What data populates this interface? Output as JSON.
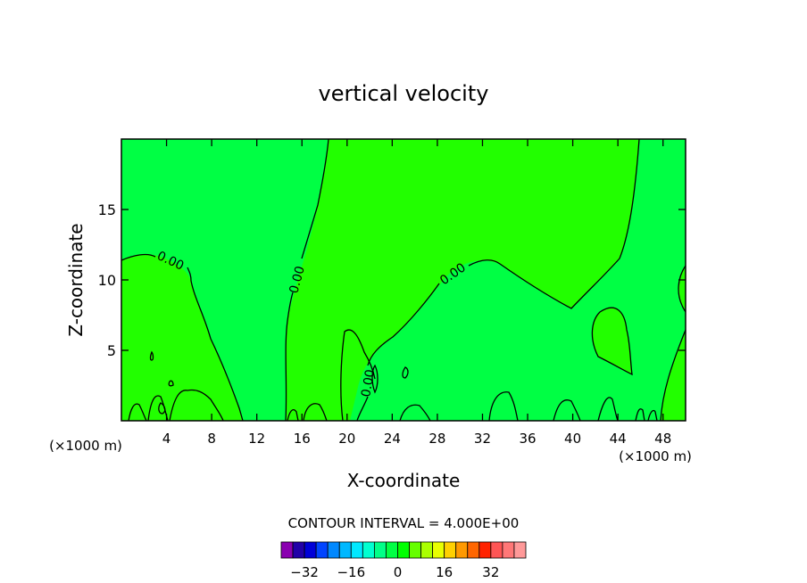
{
  "chart_data": {
    "type": "contour",
    "title": "vertical velocity",
    "xlabel": "X-coordinate",
    "ylabel": "Z-coordinate",
    "x_unit_label": "(×1000 m)",
    "xlim": [
      0,
      50
    ],
    "ylim": [
      0,
      20
    ],
    "x_ticks": [
      4,
      8,
      12,
      16,
      20,
      24,
      28,
      32,
      36,
      40,
      44,
      48
    ],
    "y_ticks": [
      5,
      10,
      15
    ],
    "contour_interval_text": "CONTOUR INTERVAL = 4.000E+00",
    "contour_labels": [
      "0.00",
      "0.00",
      "0.00",
      "0.00"
    ],
    "colorbar": {
      "colors": [
        "#8a00b0",
        "#2200a8",
        "#0000d8",
        "#0044ff",
        "#0088ff",
        "#00b8ff",
        "#00e8ff",
        "#00ffd0",
        "#00ff88",
        "#00ff44",
        "#00ff00",
        "#66ff00",
        "#aaff00",
        "#e8ff00",
        "#ffd000",
        "#ff9900",
        "#ff6600",
        "#ff2200",
        "#ff5555",
        "#ff7777",
        "#ff9999"
      ],
      "tick_labels": [
        "-32",
        "-16",
        "0",
        "16",
        "32"
      ],
      "tick_values": [
        -32,
        -16,
        0,
        16,
        32
      ]
    },
    "background_colors": {
      "near_zero_positive": "#22ff00",
      "near_zero_negative": "#00ff44",
      "weak_positive": "#55ee00"
    }
  }
}
